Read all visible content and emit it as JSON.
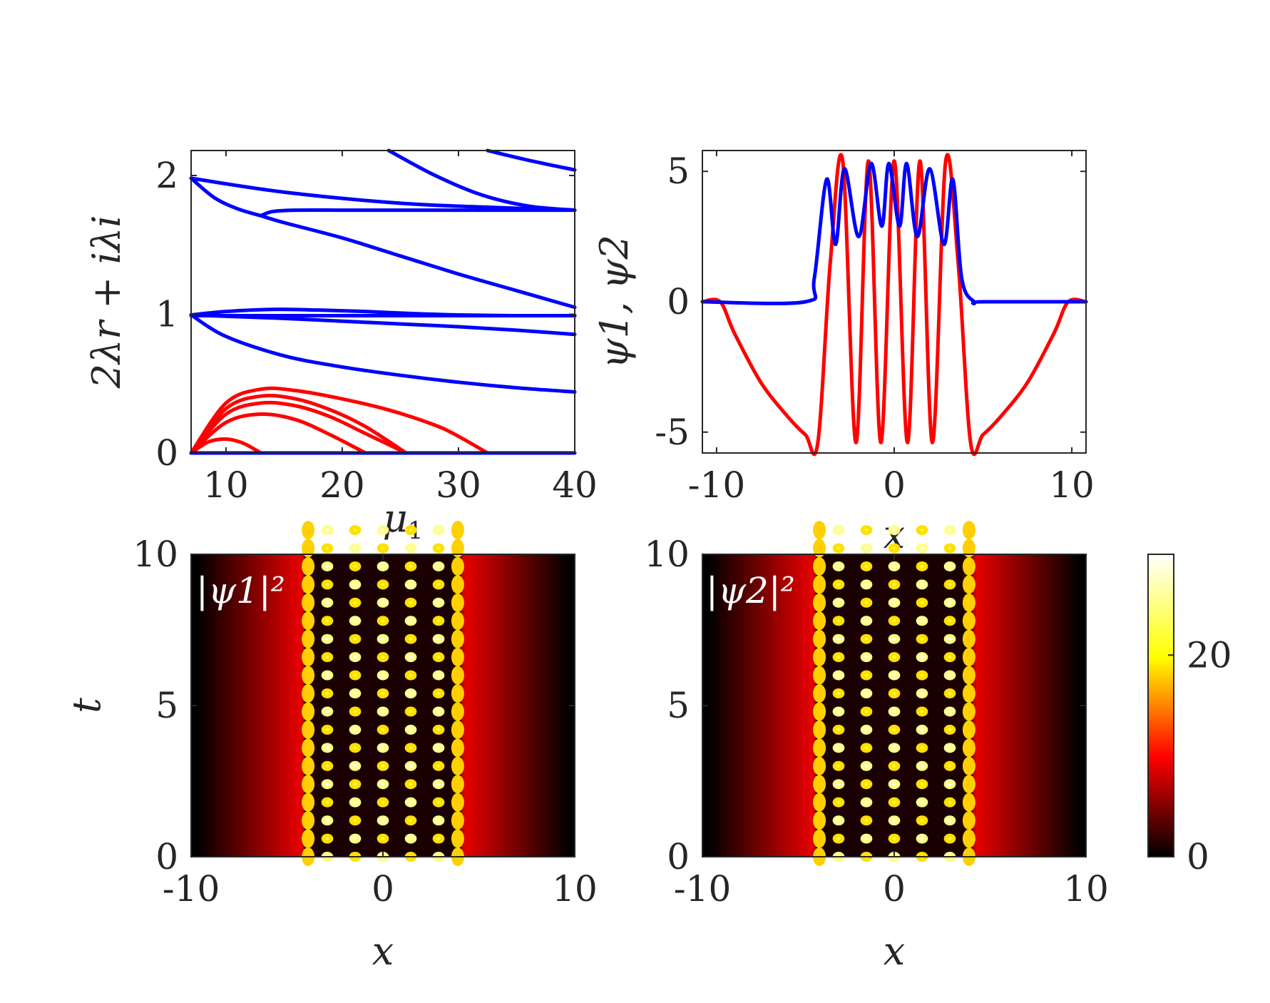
{
  "chart_data": [
    {
      "type": "line",
      "panel": "stability-spectrum",
      "xlabel": "μ1",
      "ylabel": "2λr + iλi",
      "xlim": [
        7,
        40
      ],
      "ylim": [
        0,
        2.18
      ],
      "xticks": [
        10,
        20,
        30,
        40
      ],
      "yticks": [
        0,
        1,
        2
      ],
      "xtick_labels": [
        "10",
        "20",
        "30",
        "40"
      ],
      "ytick_labels": [
        "0",
        "1",
        "2"
      ],
      "series": [
        {
          "name": "b1",
          "color": "#0000ff",
          "x": [
            7,
            15,
            25,
            33,
            40
          ],
          "y": [
            1.98,
            1.88,
            1.8,
            1.77,
            1.75
          ]
        },
        {
          "name": "b2",
          "color": "#0000ff",
          "x": [
            7,
            9,
            11,
            13
          ],
          "y": [
            1.98,
            1.84,
            1.76,
            1.71
          ]
        },
        {
          "name": "b3",
          "color": "#0000ff",
          "x": [
            13,
            14,
            16,
            20,
            25,
            30,
            35,
            40
          ],
          "y": [
            1.71,
            1.74,
            1.75,
            1.75,
            1.75,
            1.75,
            1.75,
            1.75
          ]
        },
        {
          "name": "b4",
          "color": "#0000ff",
          "x": [
            13,
            15,
            20,
            25,
            30,
            35,
            40
          ],
          "y": [
            1.71,
            1.66,
            1.55,
            1.42,
            1.29,
            1.17,
            1.05
          ]
        },
        {
          "name": "b5",
          "color": "#0000ff",
          "x": [
            7,
            10,
            15,
            20,
            25,
            30,
            35,
            40
          ],
          "y": [
            0.995,
            0.985,
            0.97,
            0.95,
            0.93,
            0.91,
            0.885,
            0.855
          ]
        },
        {
          "name": "b6",
          "color": "#0000ff",
          "x": [
            7,
            10,
            15,
            20,
            25,
            30,
            35,
            40
          ],
          "y": [
            0.995,
            0.84,
            0.7,
            0.62,
            0.56,
            0.51,
            0.47,
            0.44
          ]
        },
        {
          "name": "b7",
          "color": "#0000ff",
          "x": [
            7,
            10,
            14,
            18,
            22,
            26,
            30,
            35,
            40
          ],
          "y": [
            0.995,
            1.02,
            1.035,
            1.03,
            1.02,
            1.005,
            0.995,
            0.99,
            0.99
          ]
        },
        {
          "name": "b8",
          "color": "#0000ff",
          "x": [
            7,
            15,
            25,
            35,
            40
          ],
          "y": [
            0.99,
            0.99,
            0.99,
            0.99,
            0.99
          ]
        },
        {
          "name": "b9",
          "color": "#0000ff",
          "x": [
            24,
            28,
            32,
            36,
            40
          ],
          "y": [
            2.18,
            2.0,
            1.86,
            1.78,
            1.75
          ]
        },
        {
          "name": "b10",
          "color": "#0000ff",
          "x": [
            32.5,
            36,
            40
          ],
          "y": [
            2.18,
            2.11,
            2.04
          ]
        },
        {
          "name": "r1",
          "color": "#ff0000",
          "x": [
            7,
            8.5,
            10,
            11.5,
            13
          ],
          "y": [
            0,
            0.08,
            0.1,
            0.07,
            0
          ]
        },
        {
          "name": "r2",
          "color": "#ff0000",
          "x": [
            7,
            10,
            13,
            16,
            19,
            22
          ],
          "y": [
            0,
            0.22,
            0.28,
            0.24,
            0.13,
            0
          ]
        },
        {
          "name": "r3",
          "color": "#ff0000",
          "x": [
            7,
            10,
            13,
            16,
            19,
            22,
            25.5
          ],
          "y": [
            0,
            0.28,
            0.36,
            0.34,
            0.26,
            0.14,
            0
          ]
        },
        {
          "name": "r4",
          "color": "#ff0000",
          "x": [
            7,
            10,
            13,
            16,
            19,
            22,
            25.5
          ],
          "y": [
            0,
            0.32,
            0.41,
            0.39,
            0.31,
            0.19,
            0
          ]
        },
        {
          "name": "r5",
          "color": "#ff0000",
          "x": [
            7,
            10,
            13,
            16,
            20,
            24,
            28,
            30,
            32.5
          ],
          "y": [
            0,
            0.36,
            0.46,
            0.45,
            0.39,
            0.31,
            0.2,
            0.12,
            0
          ]
        },
        {
          "name": "zero-line",
          "color": "#0000ff",
          "x": [
            7,
            40
          ],
          "y": [
            0,
            0
          ]
        }
      ]
    },
    {
      "type": "line",
      "panel": "stationary-profiles",
      "xlabel": "x",
      "ylabel": "ψ1, ψ2",
      "xlim": [
        -10.8,
        10.8
      ],
      "ylim": [
        -5.8,
        5.8
      ],
      "xticks": [
        -10,
        0,
        10
      ],
      "yticks": [
        -5,
        0,
        5
      ],
      "xtick_labels": [
        "-10",
        "0",
        "10"
      ],
      "ytick_labels": [
        "-5",
        "0",
        "5"
      ],
      "series": [
        {
          "name": "ψ1",
          "color": "#ff0000",
          "x": [
            -10.8,
            -9.8,
            -9.0,
            -7.5,
            -6.0,
            -5.0,
            -4.3,
            -3.6,
            -2.9,
            -2.15,
            -1.45,
            -0.75,
            0,
            0.75,
            1.45,
            2.15,
            2.9,
            3.6,
            4.3,
            5.0,
            6.0,
            7.5,
            9.0,
            9.8,
            10.8
          ],
          "y": [
            0,
            0,
            -1.2,
            -3.1,
            -4.4,
            -5.1,
            -5.4,
            1.5,
            5.4,
            -5.4,
            5.4,
            -5.4,
            5.4,
            -5.4,
            5.4,
            -5.4,
            5.4,
            1.5,
            -5.4,
            -5.1,
            -4.4,
            -3.1,
            -1.2,
            0,
            0
          ]
        },
        {
          "name": "ψ2",
          "color": "#0000ff",
          "x": [
            -10.8,
            -5.0,
            -4.5,
            -3.8,
            -3.3,
            -2.8,
            -2.0,
            -1.3,
            -0.7,
            -0.3,
            0.3,
            0.7,
            1.3,
            2.0,
            2.8,
            3.3,
            3.8,
            4.5,
            5.0,
            10.8
          ],
          "y": [
            0,
            0,
            0.9,
            4.7,
            2.2,
            5.1,
            2.5,
            5.3,
            2.9,
            5.3,
            2.9,
            5.3,
            2.5,
            5.1,
            2.2,
            4.7,
            0.9,
            0,
            0,
            0
          ]
        }
      ]
    },
    {
      "type": "heatmap",
      "panel": "density-psi1",
      "annotation": "|ψ1|²",
      "xlabel": "x",
      "ylabel": "t",
      "xlim": [
        -10,
        10
      ],
      "ylim": [
        0,
        10
      ],
      "xticks": [
        -10,
        0,
        10
      ],
      "yticks": [
        0,
        5,
        10
      ],
      "xtick_labels": [
        "-10",
        "0",
        "10"
      ],
      "ytick_labels": [
        "0",
        "5",
        "10"
      ],
      "blob_columns_x": [
        -2.9,
        -1.45,
        0,
        1.45,
        2.9
      ],
      "edge_columns_x": [
        -3.9,
        3.9
      ],
      "oscillation_period_t": 1.2,
      "background_peak": 10
    },
    {
      "type": "heatmap",
      "panel": "density-psi2",
      "annotation": "|ψ2|²",
      "xlabel": "x",
      "ylabel": "",
      "xlim": [
        -10,
        10
      ],
      "ylim": [
        0,
        10
      ],
      "xticks": [
        -10,
        0,
        10
      ],
      "yticks": [
        0,
        5,
        10
      ],
      "xtick_labels": [
        "-10",
        "0",
        "10"
      ],
      "ytick_labels": [
        "0",
        "5",
        "10"
      ],
      "blob_columns_x": [
        -2.9,
        -1.45,
        0,
        1.45,
        2.9
      ],
      "edge_columns_x": [
        -3.9,
        3.9
      ],
      "oscillation_period_t": 1.2,
      "background_peak": 10
    },
    {
      "type": "colorbar",
      "colormap": "hot",
      "range": [
        0,
        30
      ],
      "ticks": [
        0,
        20
      ],
      "tick_labels": [
        "0",
        "20"
      ]
    }
  ]
}
